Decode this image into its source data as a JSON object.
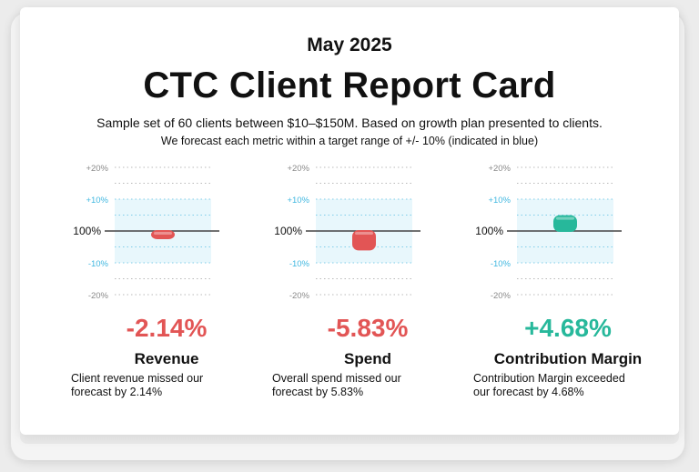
{
  "header": {
    "date": "May 2025",
    "title": "CTC Client Report Card",
    "subtitle": "Sample set of 60 clients between $10–$150M. Based on growth plan presented to clients.",
    "note": "We forecast each metric within a target range of +/- 10% (indicated in blue)"
  },
  "colors": {
    "negative": "#e25555",
    "positive": "#27b89b",
    "target_band": "#e8f7fc",
    "target_tick": "#3fb7e0",
    "outer_tick": "#8a8a8a"
  },
  "chart_data": {
    "type": "gauge",
    "axis": {
      "ticks": [
        "+20%",
        "+10%",
        "100%",
        "-10%",
        "-20%"
      ],
      "target_range": [
        -10,
        10
      ],
      "ylim": [
        -20,
        20
      ]
    },
    "metrics": [
      {
        "name": "Revenue",
        "value": -2.14,
        "value_label": "-2.14%",
        "description": "Client revenue missed our forecast by 2.14%"
      },
      {
        "name": "Spend",
        "value": -5.83,
        "value_label": "-5.83%",
        "description": "Overall spend missed our forecast by 5.83%"
      },
      {
        "name": "Contribution Margin",
        "value": 4.68,
        "value_label": "+4.68%",
        "description": "Contribution Margin exceeded our forecast by 4.68%"
      }
    ]
  }
}
